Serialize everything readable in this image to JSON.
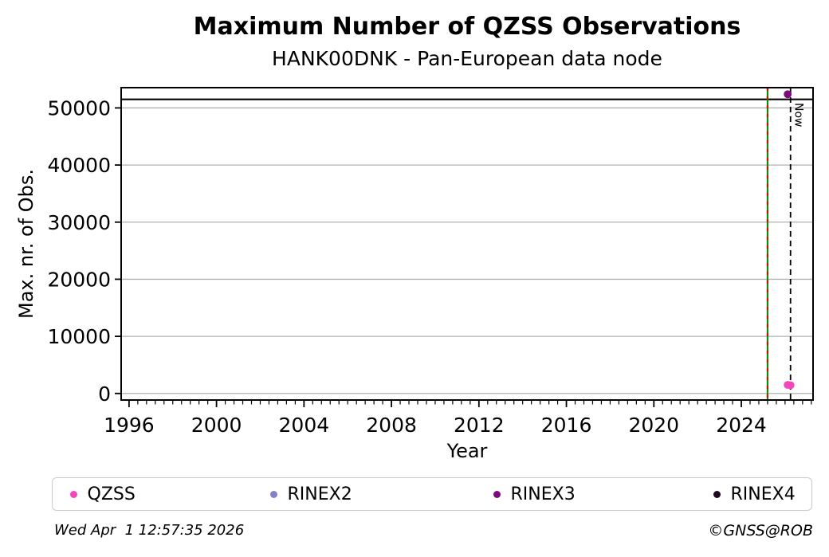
{
  "chart_data": {
    "type": "scatter",
    "title": "Maximum Number of QZSS Observations",
    "subtitle": "HANK00DNK - Pan-European data node",
    "xlabel": "Year",
    "ylabel": "Max. nr. of Obs.",
    "xlim": [
      1995.64,
      2027.28
    ],
    "ylim": [
      -1150,
      53550
    ],
    "xticks": [
      1996,
      2000,
      2004,
      2008,
      2012,
      2016,
      2020,
      2024
    ],
    "x_minor_step": 0.4,
    "yticks": [
      0,
      10000,
      20000,
      30000,
      40000,
      50000
    ],
    "grid": {
      "axis": "y",
      "color": "#b0b0b0"
    },
    "series": [
      {
        "name": "QZSS",
        "color": "#f545bb",
        "points": [
          [
            2026.12,
            1500
          ],
          [
            2026.25,
            1450
          ]
        ]
      },
      {
        "name": "RINEX2",
        "color": "#8181c8",
        "points": []
      },
      {
        "name": "RINEX3",
        "color": "#7d0a7d",
        "points": [
          [
            2026.12,
            52400
          ]
        ]
      },
      {
        "name": "RINEX4",
        "color": "#210721",
        "points": []
      }
    ],
    "annotations": [
      {
        "type": "hline",
        "name": "max-obs-line",
        "y": 51500,
        "color": "#000000",
        "width": 2.2,
        "dash": "",
        "label": ""
      },
      {
        "type": "vline",
        "name": "event-line-green",
        "x": 2025.2,
        "color": "#0b8a0b",
        "width": 2.2,
        "dash": "",
        "label": ""
      },
      {
        "type": "vline",
        "name": "event-line-red-dash",
        "x": 2025.2,
        "color": "#cf0e0e",
        "width": 2.2,
        "dash": "4,7",
        "label": ""
      },
      {
        "type": "vline",
        "name": "now-line",
        "x": 2026.25,
        "color": "#000000",
        "width": 1.8,
        "dash": "7,5",
        "label": "Now"
      }
    ],
    "legend": {
      "position": "bottom",
      "entries": [
        "QZSS",
        "RINEX2",
        "RINEX3",
        "RINEX4"
      ]
    }
  },
  "footer": {
    "timestamp": "Wed Apr  1 12:57:35 2026",
    "credit": "©GNSS@ROB"
  }
}
